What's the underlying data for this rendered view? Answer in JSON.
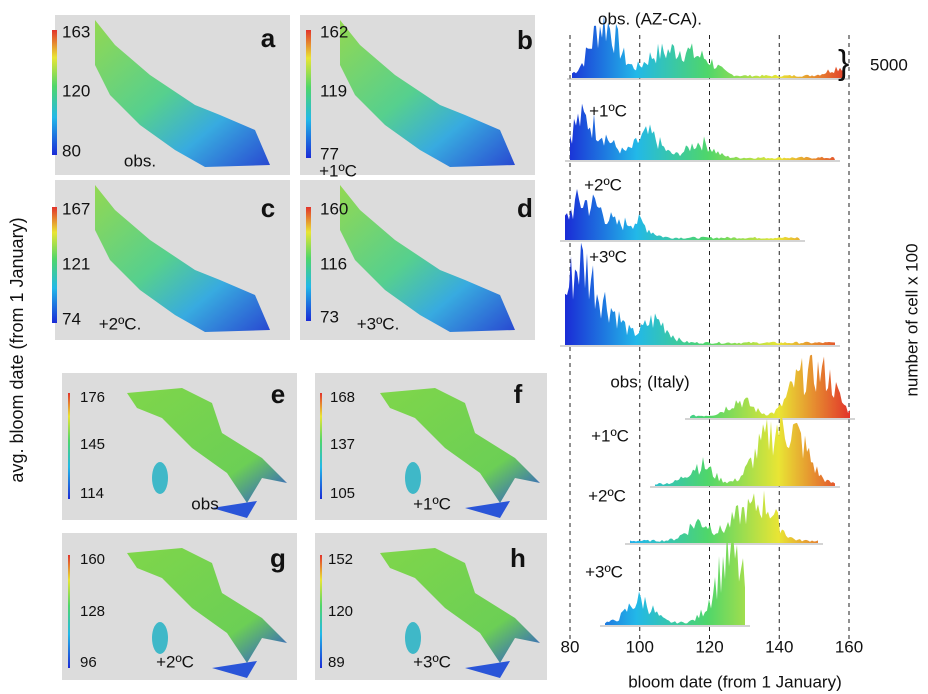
{
  "left_label": "avg. bloom date (from 1 January)",
  "maps": [
    {
      "letter": "a",
      "colorbar": [
        "163",
        "120",
        "80"
      ],
      "label": "obs."
    },
    {
      "letter": "b",
      "colorbar": [
        "162",
        "119",
        "77"
      ],
      "label": "+1ºC"
    },
    {
      "letter": "c",
      "colorbar": [
        "167",
        "121",
        "74"
      ],
      "label": "+2ºC."
    },
    {
      "letter": "d",
      "colorbar": [
        "160",
        "116",
        "73"
      ],
      "label": "+3ºC."
    },
    {
      "letter": "e",
      "colorbar": [
        "176",
        "145",
        "114"
      ],
      "label": "obs"
    },
    {
      "letter": "f",
      "colorbar": [
        "168",
        "137",
        "105"
      ],
      "label": "+1ºC"
    },
    {
      "letter": "g",
      "colorbar": [
        "160",
        "128",
        "96"
      ],
      "label": "+2ºC"
    },
    {
      "letter": "h",
      "colorbar": [
        "152",
        "120",
        "89"
      ],
      "label": "+3ºC"
    }
  ],
  "histograms": {
    "labels": [
      "obs. (AZ-CA).",
      "+1ºC",
      "+2ºC",
      "+3ºC",
      "obs. (Italy)",
      "+1ºC",
      "+2ºC",
      "+3ºC"
    ],
    "scale_label": "5000",
    "xlim": [
      80,
      160
    ],
    "xticks": [
      80,
      100,
      120,
      140,
      160
    ],
    "xlabel": "bloom date (from 1 January)",
    "ylabel": "number of cell x 100"
  }
}
